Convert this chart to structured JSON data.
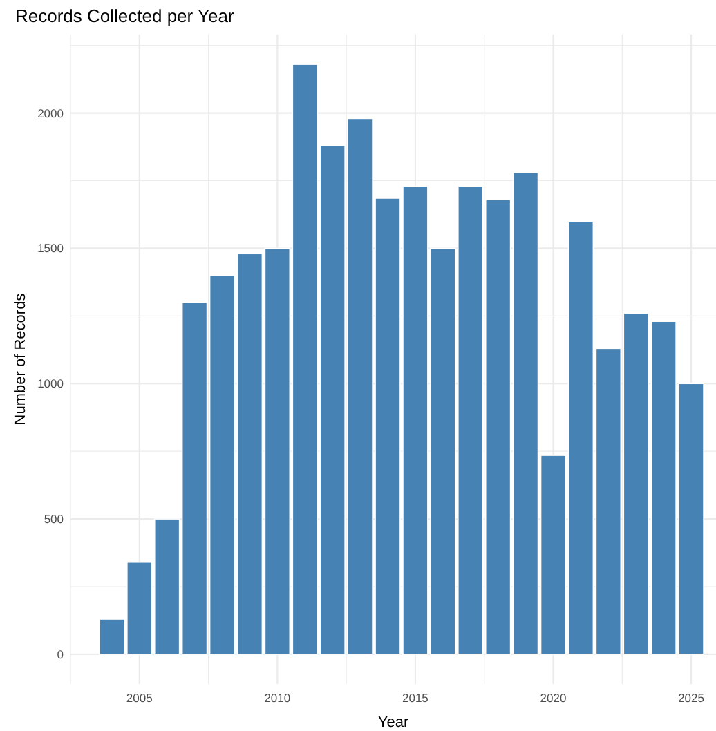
{
  "chart_data": {
    "type": "bar",
    "title": "Records Collected per Year",
    "xlabel": "Year",
    "ylabel": "Number of Records",
    "x": [
      2004,
      2005,
      2006,
      2007,
      2008,
      2009,
      2010,
      2011,
      2012,
      2013,
      2014,
      2015,
      2016,
      2017,
      2018,
      2019,
      2020,
      2021,
      2022,
      2023,
      2024,
      2025
    ],
    "values": [
      130,
      340,
      500,
      1300,
      1400,
      1480,
      1500,
      2180,
      1880,
      1980,
      1685,
      1730,
      1500,
      1730,
      1680,
      1780,
      735,
      1600,
      1130,
      1260,
      1230,
      1000
    ],
    "color": "#4682b4",
    "xlim": [
      2002.5,
      2025.9
    ],
    "xticks": [
      {
        "value": 2002.5,
        "label": null
      },
      2005,
      {
        "value": 2007.5,
        "label": null
      },
      2010,
      {
        "value": 2012.5,
        "label": null
      },
      2015,
      {
        "value": 2017.5,
        "label": null
      },
      2020,
      {
        "value": 2022.5,
        "label": null
      },
      2025
    ],
    "ylim": [
      -110,
      2290
    ],
    "yticks": [
      0,
      {
        "value": 250,
        "label": null
      },
      500,
      {
        "value": 750,
        "label": null
      },
      1000,
      {
        "value": 1250,
        "label": null
      },
      1500,
      {
        "value": 1750,
        "label": null
      },
      2000,
      {
        "value": 2250,
        "label": null
      }
    ],
    "grid": true
  }
}
